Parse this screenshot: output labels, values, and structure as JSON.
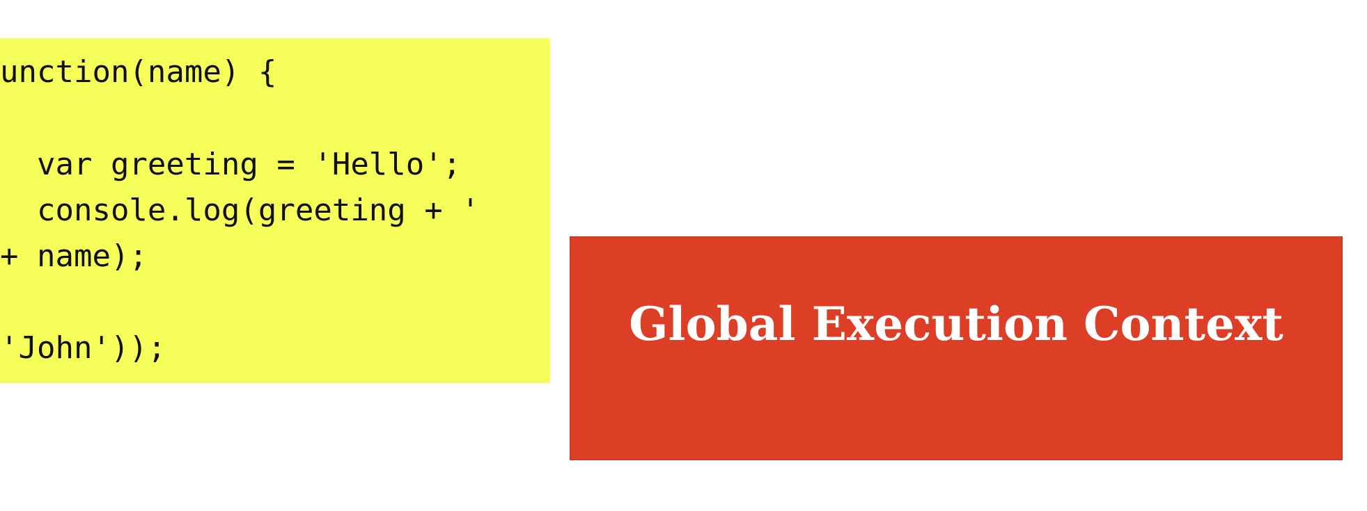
{
  "code_block": {
    "background_color": "#f6fe5a",
    "lines": [
      "unction(name) {",
      "",
      "  var greeting = 'Hello';",
      "  console.log(greeting + '",
      "+ name);",
      "",
      "'John'));"
    ]
  },
  "execution_context": {
    "title": "Global Execution Context",
    "background_color": "#dd3e26"
  }
}
